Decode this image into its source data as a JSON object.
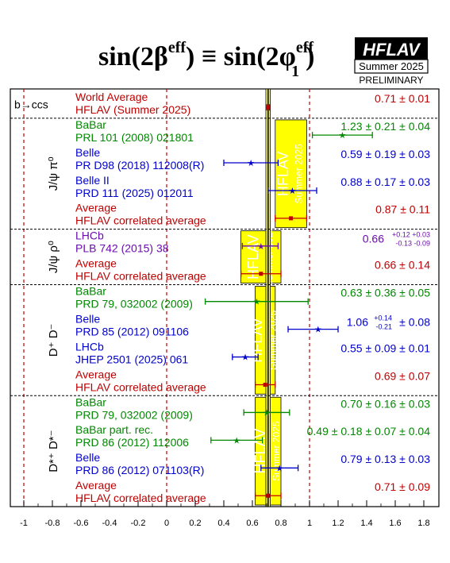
{
  "title": {
    "main": "sin(2β",
    "sup1": "eff",
    "equiv": ") ≡ sin(2φ",
    "sup2": "eff",
    "sub2": "1",
    "close": ")"
  },
  "logo": {
    "name": "HFLAV",
    "edition": "Summer 2025",
    "status": "PRELIMINARY"
  },
  "band_watermark": "HFLAV",
  "band_watermark_sub": "Summer 2025",
  "chart_data": {
    "type": "scatter",
    "xlim": [
      -1.1,
      1.85
    ],
    "x_ticks": [
      -1,
      -0.8,
      -0.6,
      -0.4,
      -0.2,
      0,
      0.2,
      0.4,
      0.6,
      0.8,
      1,
      1.2,
      1.4,
      1.6,
      1.8
    ],
    "x_tick_labels": [
      "-1",
      "-0.8",
      "-0.6",
      "-0.4",
      "-0.2",
      "0",
      "0.2",
      "0.4",
      "0.6",
      "0.8",
      "1",
      "1.2",
      "1.4",
      "1.6",
      "1.8"
    ],
    "reference_lines": [
      -1,
      0,
      1
    ],
    "world_average": {
      "value": 0.71,
      "error": 0.01
    },
    "groups": [
      {
        "label": "b→ccs",
        "rows": [
          {
            "exp": "World Average",
            "ref": "HFLAV (Summer 2025)",
            "value": 0.71,
            "err_lo": 0.01,
            "err_hi": 0.01,
            "text": "0.71 ± 0.01",
            "color": "#c00000"
          }
        ]
      },
      {
        "label": "J/ψ π⁰",
        "band": [
          0.76,
          0.98
        ],
        "rows": [
          {
            "exp": "BaBar",
            "ref": "PRL 101 (2008) 021801",
            "value": 1.23,
            "err_lo": 0.21,
            "err_hi": 0.21,
            "text": "1.23 ± 0.21 ± 0.04",
            "color": "#008800"
          },
          {
            "exp": "Belle",
            "ref": "PR D98 (2018) 112008(R)",
            "value": 0.59,
            "err_lo": 0.19,
            "err_hi": 0.19,
            "text": "0.59 ± 0.19 ± 0.03",
            "color": "#0000cc"
          },
          {
            "exp": "Belle II",
            "ref": "PRD 111 (2025) 012011",
            "value": 0.88,
            "err_lo": 0.17,
            "err_hi": 0.17,
            "text": "0.88 ± 0.17 ± 0.03",
            "color": "#0000cc"
          },
          {
            "exp": "Average",
            "ref": "HFLAV correlated average",
            "value": 0.87,
            "err_lo": 0.11,
            "err_hi": 0.11,
            "text": "0.87 ± 0.11",
            "color": "#c00000",
            "average": true
          }
        ]
      },
      {
        "label": "J/ψ ρ⁰",
        "band": [
          0.52,
          0.8
        ],
        "rows": [
          {
            "exp": "LHCb",
            "ref": "PLB 742 (2015) 38",
            "value": 0.66,
            "err_lo": 0.13,
            "err_hi": 0.12,
            "text": "0.66",
            "text_hi": "+0.12 +0.03",
            "text_lo": "-0.13  -0.09",
            "color": "#6a0dad"
          },
          {
            "exp": "Average",
            "ref": "HFLAV correlated average",
            "value": 0.66,
            "err_lo": 0.14,
            "err_hi": 0.14,
            "text": "0.66 ± 0.14",
            "color": "#c00000",
            "average": true
          }
        ]
      },
      {
        "label": "D⁺ D⁻",
        "band": [
          0.62,
          0.76
        ],
        "rows": [
          {
            "exp": "BaBar",
            "ref": "PRD 79, 032002 (2009)",
            "value": 0.63,
            "err_lo": 0.36,
            "err_hi": 0.36,
            "text": "0.63 ± 0.36 ± 0.05",
            "color": "#008800"
          },
          {
            "exp": "Belle",
            "ref": "PRD 85 (2012) 091106",
            "value": 1.06,
            "err_lo": 0.21,
            "err_hi": 0.14,
            "text": "1.06",
            "text_hi": "+0.14",
            "text_lo": "-0.21",
            "text_tail": "± 0.08",
            "color": "#0000cc"
          },
          {
            "exp": "LHCb",
            "ref": "JHEP 2501 (2025) 061",
            "value": 0.55,
            "err_lo": 0.09,
            "err_hi": 0.09,
            "text": "0.55 ± 0.09 ± 0.01",
            "color": "#0000cc"
          },
          {
            "exp": "Average",
            "ref": "HFLAV correlated average",
            "value": 0.69,
            "err_lo": 0.07,
            "err_hi": 0.07,
            "text": "0.69 ± 0.07",
            "color": "#c00000",
            "average": true
          }
        ]
      },
      {
        "label": "D*⁺ D*⁻",
        "band": [
          0.62,
          0.8
        ],
        "rows": [
          {
            "exp": "BaBar",
            "ref": "PRD 79, 032002 (2009)",
            "value": 0.7,
            "err_lo": 0.16,
            "err_hi": 0.16,
            "text": "0.70 ± 0.16 ± 0.03",
            "color": "#008800"
          },
          {
            "exp": "BaBar part. rec.",
            "ref": "PRD 86 (2012) 112006",
            "value": 0.49,
            "err_lo": 0.18,
            "err_hi": 0.18,
            "text": "0.49 ± 0.18 ± 0.07 ± 0.04",
            "color": "#008800"
          },
          {
            "exp": "Belle",
            "ref": "PRD 86 (2012) 071103(R)",
            "value": 0.79,
            "err_lo": 0.13,
            "err_hi": 0.13,
            "text": "0.79 ± 0.13 ± 0.03",
            "color": "#0000cc"
          },
          {
            "exp": "Average",
            "ref": "HFLAV correlated average",
            "value": 0.71,
            "err_lo": 0.09,
            "err_hi": 0.09,
            "text": "0.71 ± 0.09",
            "color": "#c00000",
            "average": true
          }
        ]
      }
    ]
  }
}
